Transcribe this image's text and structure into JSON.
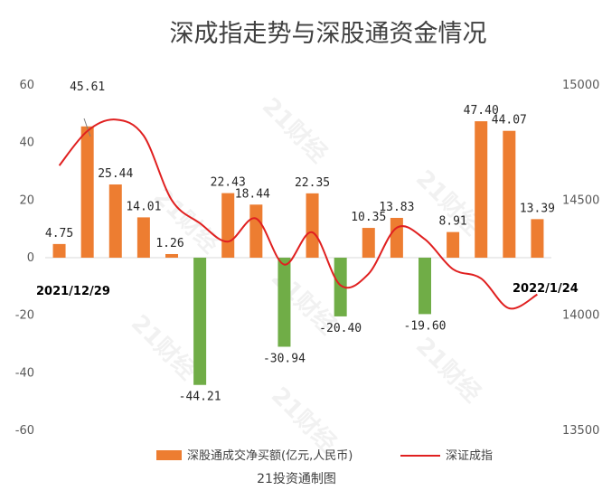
{
  "chart_data": {
    "type": "bar",
    "title": "深成指走势与深股通资金情况",
    "source": "21投资通制图",
    "watermark": "21财经",
    "y_left": {
      "min": -60,
      "max": 60,
      "ticks": [
        60,
        40,
        20,
        0,
        -20,
        -40,
        -60
      ],
      "tick_labels": [
        "60",
        "40",
        "20",
        "0",
        "-20",
        "-40",
        "-60"
      ]
    },
    "y_right": {
      "min": 13500,
      "max": 15000,
      "ticks": [
        15000,
        14500,
        14000,
        13500
      ],
      "tick_labels": [
        "15000",
        "14500",
        "14000",
        "13500"
      ]
    },
    "date_labels": {
      "start": "2021/12/29",
      "end": "2022/1/24"
    },
    "colors": {
      "positive": "#ED7D31",
      "negative": "#70AD47",
      "line": "#E02020"
    },
    "series": [
      {
        "name": "深股通成交净买额(亿元,人民币)",
        "axis": "left",
        "values": [
          4.75,
          45.61,
          25.44,
          14.01,
          1.26,
          -44.21,
          22.43,
          18.44,
          -30.94,
          22.35,
          -20.4,
          10.35,
          13.83,
          -19.6,
          8.91,
          47.4,
          44.07,
          13.39
        ],
        "labels": [
          "4.75",
          "45.61",
          "25.44",
          "14.01",
          "1.26",
          "-44.21",
          "22.43",
          "18.44",
          "-30.94",
          "22.35",
          "-20.40",
          "10.35",
          "13.83",
          "-19.60",
          "8.91",
          "47.40",
          "44.07",
          "13.39"
        ]
      },
      {
        "name": "深证成指",
        "axis": "right",
        "type": "line",
        "values": [
          14650,
          14800,
          14850,
          14780,
          14500,
          14400,
          14320,
          14420,
          14220,
          14360,
          14130,
          14180,
          14380,
          14330,
          14200,
          14160,
          14030,
          14090
        ]
      }
    ]
  }
}
